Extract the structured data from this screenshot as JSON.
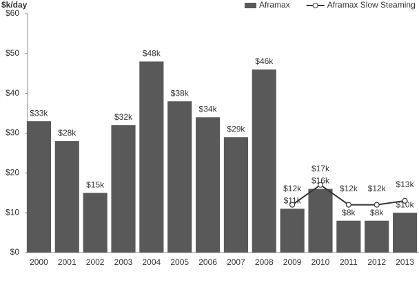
{
  "chart_data": {
    "type": "bar",
    "ylabel": "$k/day",
    "categories": [
      "2000",
      "2001",
      "2002",
      "2003",
      "2004",
      "2005",
      "2006",
      "2007",
      "2008",
      "2009",
      "2010",
      "2011",
      "2012",
      "2013"
    ],
    "series": [
      {
        "name": "Aframax",
        "type": "bar",
        "color": "#595959",
        "values": [
          33,
          28,
          15,
          32,
          48,
          38,
          34,
          29,
          46,
          11,
          16,
          8,
          8,
          10
        ],
        "value_labels": [
          "$33k",
          "$28k",
          "$15k",
          "$32k",
          "$48k",
          "$38k",
          "$34k",
          "$29k",
          "$46k",
          "$11k",
          "$16k",
          "$8k",
          "$8k",
          "$10k"
        ]
      },
      {
        "name": "Aframax Slow Steaming",
        "type": "line",
        "color": "#333333",
        "values": [
          null,
          null,
          null,
          null,
          null,
          null,
          null,
          null,
          null,
          12,
          17,
          12,
          12,
          13
        ],
        "value_labels": [
          null,
          null,
          null,
          null,
          null,
          null,
          null,
          null,
          null,
          "$12k",
          "$17k",
          "$12k",
          "$12k",
          "$13k"
        ]
      }
    ],
    "ylim": [
      0,
      60
    ],
    "yticks": [
      {
        "value": 0,
        "label": "$0"
      },
      {
        "value": 10,
        "label": "$10"
      },
      {
        "value": 20,
        "label": "$20"
      },
      {
        "value": 30,
        "label": "$30"
      },
      {
        "value": 40,
        "label": "$40"
      },
      {
        "value": 50,
        "label": "$50"
      },
      {
        "value": 60,
        "label": "$60"
      }
    ],
    "legend": "top-right"
  }
}
